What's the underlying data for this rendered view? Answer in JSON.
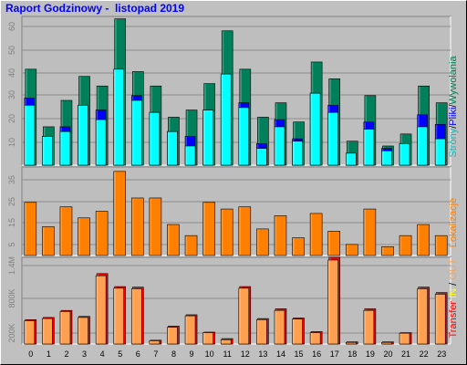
{
  "title": "Raport Godzinowy -  listopad 2019",
  "chart_data": [
    {
      "type": "bar",
      "x": [
        0,
        1,
        2,
        3,
        4,
        5,
        6,
        7,
        8,
        9,
        10,
        11,
        12,
        13,
        14,
        15,
        16,
        17,
        18,
        19,
        20,
        21,
        22,
        23
      ],
      "ylim": [
        0,
        62
      ],
      "yticks": [
        "10",
        "20",
        "30",
        "40",
        "50",
        "60"
      ],
      "grid": true,
      "series": [
        {
          "name": "Wywolania",
          "color": "#00805a",
          "values": [
            40,
            16,
            27,
            37,
            33,
            61,
            39,
            33,
            20,
            23,
            34,
            56,
            40,
            20,
            26,
            18,
            43,
            36,
            10,
            29,
            8,
            13,
            33,
            26
          ]
        },
        {
          "name": "Pliki",
          "color": "#0000ff",
          "values": [
            28,
            12,
            16,
            25,
            23,
            37,
            29,
            22,
            14,
            12,
            23,
            37,
            26,
            9,
            19,
            11,
            30,
            25,
            5,
            18,
            7,
            9,
            21,
            17
          ]
        },
        {
          "name": "Strony",
          "color": "#00ffff",
          "values": [
            25,
            12,
            14,
            25,
            19,
            40,
            27,
            22,
            14,
            8,
            23,
            38,
            24,
            7,
            16,
            10,
            30,
            22,
            5,
            15,
            6,
            9,
            16,
            11
          ]
        }
      ]
    },
    {
      "type": "bar",
      "x": [
        0,
        1,
        2,
        3,
        4,
        5,
        6,
        7,
        8,
        9,
        10,
        11,
        12,
        13,
        14,
        15,
        16,
        17,
        18,
        19,
        20,
        21,
        22,
        23
      ],
      "ylim": [
        0,
        40
      ],
      "yticks": [
        "5",
        "15",
        "25",
        "35"
      ],
      "grid": true,
      "series": [
        {
          "name": "Lokalizacje",
          "color": "#ff8000",
          "values": [
            24,
            13,
            22,
            17,
            20,
            38,
            26,
            26,
            14,
            9,
            24,
            21,
            22,
            12,
            18,
            8,
            19,
            11,
            5,
            21,
            4,
            9,
            14,
            9
          ]
        }
      ]
    },
    {
      "type": "bar",
      "x": [
        0,
        1,
        2,
        3,
        4,
        5,
        6,
        7,
        8,
        9,
        10,
        11,
        12,
        13,
        14,
        15,
        16,
        17,
        18,
        19,
        20,
        21,
        22,
        23
      ],
      "ylim": [
        0,
        1600000
      ],
      "yticks": [
        "200K",
        "800K",
        "1.4M"
      ],
      "grid": true,
      "series": [
        {
          "name": "Transfer",
          "color": "#ff0000",
          "values": [
            450000,
            490000,
            620000,
            510000,
            1300000,
            1060000,
            1050000,
            70000,
            330000,
            540000,
            220000,
            100000,
            1060000,
            470000,
            650000,
            480000,
            230000,
            1600000,
            40000,
            650000,
            40000,
            210000,
            1050000,
            950000
          ]
        },
        {
          "name": "IN",
          "color": "#ffff00",
          "values": [
            0,
            0,
            0,
            0,
            0,
            0,
            0,
            0,
            0,
            0,
            0,
            0,
            0,
            0,
            0,
            0,
            0,
            0,
            0,
            0,
            0,
            0,
            0,
            0
          ]
        },
        {
          "name": "OUT",
          "color": "#ffa050",
          "values": [
            430000,
            470000,
            600000,
            490000,
            1260000,
            1030000,
            1020000,
            60000,
            310000,
            520000,
            210000,
            80000,
            1030000,
            450000,
            620000,
            460000,
            210000,
            1550000,
            30000,
            620000,
            30000,
            200000,
            1020000,
            920000
          ]
        }
      ]
    }
  ],
  "legends": {
    "top": [
      {
        "text": "Strony",
        "color": "#00c0c0"
      },
      {
        "text": "/",
        "color": "#000000"
      },
      {
        "text": "Pliki",
        "color": "#0000ff"
      },
      {
        "text": "/",
        "color": "#000000"
      },
      {
        "text": "Wywolania",
        "color": "#00805a"
      }
    ],
    "middle": [
      {
        "text": "Lokalizacje",
        "color": "#ff8000"
      }
    ],
    "bottom": [
      {
        "text": "Transfer",
        "color": "#ff0000"
      },
      {
        "text": "  ",
        "color": "#000000"
      },
      {
        "text": "IN",
        "color": "#ffff00"
      },
      {
        "text": " / ",
        "color": "#000000"
      },
      {
        "text": "OUT",
        "color": "#ffa050"
      }
    ]
  },
  "colors": {
    "panel_bg": "#bebebe",
    "frame_bg": "#c0c0c0",
    "title": "#0000ff",
    "axis_text": "#000000",
    "tick_text": "#808080"
  }
}
